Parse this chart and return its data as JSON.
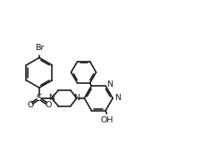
{
  "bg": "#ffffff",
  "lc": "#1a1a1a",
  "lw": 1.15,
  "fs": 6.8,
  "fig_w": 2.35,
  "fig_h": 1.79,
  "dpi": 100,
  "xlim": [
    0.0,
    10.0
  ],
  "ylim": [
    0.5,
    7.5
  ]
}
